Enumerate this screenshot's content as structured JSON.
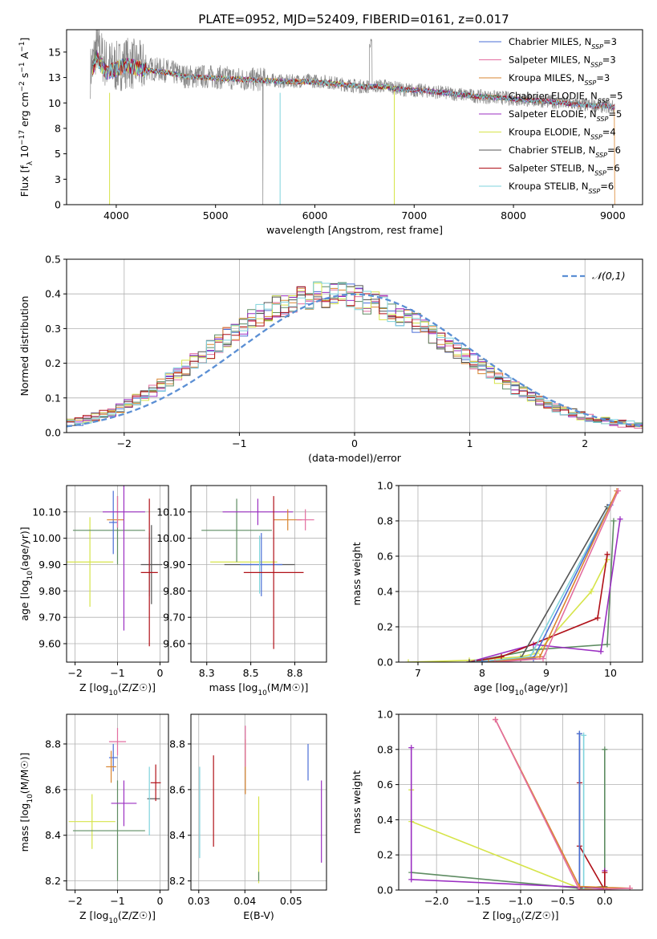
{
  "figure_title": "PLATE=0952, MJD=52409, FIBERID=0161, z=0.017",
  "series_styles": [
    {
      "name": "Chabrier MILES",
      "nssp": "3",
      "color": "#4a6ed6"
    },
    {
      "name": "Salpeter MILES",
      "nssp": "3",
      "color": "#e36ea0"
    },
    {
      "name": "Kroupa MILES",
      "nssp": "3",
      "color": "#d98530"
    },
    {
      "name": "Chabrier ELODIE",
      "nssp": "5",
      "color": "#5e8c62"
    },
    {
      "name": "Salpeter ELODIE",
      "nssp": "5",
      "color": "#9b2fc2"
    },
    {
      "name": "Kroupa ELODIE",
      "nssp": "4",
      "color": "#d6e44a"
    },
    {
      "name": "Chabrier STELIB",
      "nssp": "6",
      "color": "#555555"
    },
    {
      "name": "Salpeter STELIB",
      "nssp": "6",
      "color": "#b01018"
    },
    {
      "name": "Kroupa STELIB",
      "nssp": "6",
      "color": "#7fd3dc"
    }
  ],
  "chart_data": [
    {
      "id": "spectrum",
      "type": "line",
      "title": "PLATE=0952, MJD=52409, FIBERID=0161, z=0.017",
      "xlabel": "wavelength [Angstrom, rest frame]",
      "ylabel": "Flux [f_λ 10^-17 erg cm^-2 s^-1 A^-1]",
      "xlim": [
        3500,
        9300
      ],
      "ylim": [
        0,
        17.2
      ],
      "xticks": [
        4000,
        5000,
        6000,
        7000,
        8000,
        9000
      ],
      "yticks": [
        0.0,
        2.5,
        5.0,
        7.5,
        10.0,
        12.5,
        15.0
      ],
      "legend": "upper right",
      "data": {
        "observed": {
          "color": "#888888",
          "x": [
            3740,
            3800,
            3900,
            4000,
            4100,
            4300,
            4500,
            4700,
            4900,
            5100,
            5300,
            5500,
            5700,
            5900,
            6100,
            6300,
            6500,
            6700,
            6900,
            7100,
            7300,
            7500,
            7700,
            7900,
            8100,
            8300,
            8500,
            8700,
            8900,
            9020
          ],
          "y": [
            13.0,
            15.5,
            13.8,
            13.5,
            14.0,
            13.4,
            13.2,
            12.6,
            12.6,
            12.5,
            12.3,
            12.3,
            12.1,
            12.2,
            12.1,
            11.8,
            11.6,
            11.7,
            11.3,
            11.2,
            11.0,
            10.8,
            10.6,
            10.5,
            10.3,
            10.2,
            10.0,
            9.8,
            9.7,
            9.6
          ]
        },
        "model": {
          "x": [
            3740,
            3800,
            3900,
            4000,
            4100,
            4300,
            4500,
            4700,
            4900,
            5100,
            5300,
            5500,
            5700,
            5900,
            6100,
            6300,
            6500,
            6700,
            6900,
            7100,
            7300,
            7500,
            7700,
            7900,
            8100,
            8300,
            8500,
            8700,
            8900,
            9020
          ],
          "y": [
            12.5,
            14.5,
            13.0,
            13.3,
            13.7,
            13.2,
            13.0,
            12.6,
            12.5,
            12.4,
            12.3,
            12.2,
            12.1,
            12.1,
            12.0,
            11.8,
            11.6,
            11.6,
            11.3,
            11.2,
            11.0,
            10.8,
            10.6,
            10.5,
            10.3,
            10.2,
            10.0,
            9.8,
            9.7,
            9.6
          ]
        }
      }
    },
    {
      "id": "residual_hist",
      "type": "histogram",
      "xlabel": "(data-model)/error",
      "ylabel": "Normed distribution",
      "xlim": [
        -2.5,
        2.5
      ],
      "ylim": [
        0,
        0.5
      ],
      "xticks": [
        -2,
        -1,
        0,
        1,
        2
      ],
      "yticks": [
        0.0,
        0.1,
        0.2,
        0.3,
        0.4,
        0.5
      ],
      "legend": "upper right",
      "reference_label": "𝒩(0,1)",
      "reference_color": "#5b8fd4",
      "bin_width": 0.1,
      "bin_start": -2.5,
      "base_values": [
        0.028,
        0.032,
        0.038,
        0.045,
        0.052,
        0.06,
        0.07,
        0.082,
        0.095,
        0.108,
        0.122,
        0.138,
        0.155,
        0.17,
        0.188,
        0.205,
        0.222,
        0.24,
        0.258,
        0.275,
        0.292,
        0.308,
        0.322,
        0.336,
        0.348,
        0.36,
        0.37,
        0.38,
        0.388,
        0.394,
        0.398,
        0.399,
        0.399,
        0.396,
        0.392,
        0.386,
        0.378,
        0.37,
        0.36,
        0.35,
        0.338,
        0.326,
        0.312,
        0.298,
        0.283,
        0.268,
        0.252,
        0.236,
        0.22,
        0.204,
        0.188,
        0.172,
        0.157,
        0.142,
        0.128,
        0.115,
        0.102,
        0.09,
        0.08,
        0.071,
        0.063,
        0.056,
        0.049,
        0.043,
        0.038,
        0.033,
        0.029,
        0.026,
        0.023,
        0.021
      ]
    },
    {
      "id": "z_age",
      "type": "errorbar",
      "xlabel": "Z [log10(Z/Z☉)]",
      "ylabel": "age [log10(age/yr)]",
      "xlim": [
        -2.2,
        0.2
      ],
      "ylim": [
        9.53,
        10.2
      ],
      "xticks": [
        -2,
        -1,
        0
      ],
      "yticks": [
        9.6,
        9.7,
        9.8,
        9.9,
        10.0,
        10.1
      ],
      "points": [
        {
          "s": 5,
          "x": -1.65,
          "y": 9.91,
          "dx": 0.55,
          "dy": 0.17
        },
        {
          "s": 3,
          "x": -1.2,
          "y": 10.03,
          "dx": 0.85,
          "dy": 0.0
        },
        {
          "s": 3,
          "x": -1.0,
          "y": 10.03,
          "dx": 0.0,
          "dy": 0.13
        },
        {
          "s": 0,
          "x": -1.1,
          "y": 10.06,
          "dx": 0.1,
          "dy": 0.12
        },
        {
          "s": 2,
          "x": -1.05,
          "y": 10.07,
          "dx": 0.2,
          "dy": 0.0
        },
        {
          "s": 1,
          "x": -1.0,
          "y": 10.1,
          "dx": 0.0,
          "dy": 0.06
        },
        {
          "s": 4,
          "x": -0.85,
          "y": 10.1,
          "dx": 0.5,
          "dy": 0.45
        },
        {
          "s": 6,
          "x": -0.2,
          "y": 9.9,
          "dx": 0.25,
          "dy": 0.15
        },
        {
          "s": 8,
          "x": -0.25,
          "y": 9.9,
          "dx": 0.0,
          "dy": 0.12
        },
        {
          "s": 7,
          "x": -0.25,
          "y": 9.87,
          "dx": 0.2,
          "dy": 0.28
        }
      ]
    },
    {
      "id": "mass_age",
      "type": "errorbar",
      "xlabel": "mass [log10(M/M☉)]",
      "ylabel": "",
      "xlim": [
        8.16,
        8.93
      ],
      "ylim": [
        9.53,
        10.2
      ],
      "xticks": [
        8.25,
        8.5,
        8.75
      ],
      "yticks": [
        9.6,
        9.7,
        9.8,
        9.9,
        10.0,
        10.1
      ],
      "points": [
        {
          "s": 5,
          "x": 8.46,
          "y": 9.91,
          "dx": 0.19,
          "dy": 0.0
        },
        {
          "s": 3,
          "x": 8.42,
          "y": 10.03,
          "dx": 0.2,
          "dy": 0.12
        },
        {
          "s": 6,
          "x": 8.55,
          "y": 9.9,
          "dx": 0.2,
          "dy": 0.0
        },
        {
          "s": 0,
          "x": 8.56,
          "y": 9.9,
          "dx": 0.12,
          "dy": 0.12
        },
        {
          "s": 8,
          "x": 8.55,
          "y": 9.9,
          "dx": 0.0,
          "dy": 0.11
        },
        {
          "s": 4,
          "x": 8.54,
          "y": 10.1,
          "dx": 0.2,
          "dy": 0.05
        },
        {
          "s": 2,
          "x": 8.71,
          "y": 10.07,
          "dx": 0.08,
          "dy": 0.04
        },
        {
          "s": 1,
          "x": 8.81,
          "y": 10.07,
          "dx": 0.05,
          "dy": 0.04
        },
        {
          "s": 7,
          "x": 8.63,
          "y": 9.87,
          "dx": 0.17,
          "dy": 0.29
        }
      ]
    },
    {
      "id": "age_mw",
      "type": "line",
      "xlabel": "age [log10(age/yr)]",
      "ylabel": "mass weight",
      "xlim": [
        6.7,
        10.5
      ],
      "ylim": [
        0,
        1.0
      ],
      "xticks": [
        7,
        8,
        9,
        10
      ],
      "yticks": [
        0.0,
        0.2,
        0.4,
        0.6,
        0.8,
        1.0
      ],
      "series": [
        {
          "s": 5,
          "x": [
            6.85,
            7.8,
            8.6,
            8.85,
            9.7,
            9.95
          ],
          "y": [
            0.0,
            0.01,
            0.03,
            0.05,
            0.4,
            0.58
          ]
        },
        {
          "s": 3,
          "x": [
            7.8,
            8.8,
            9.95,
            10.05
          ],
          "y": [
            0.0,
            0.07,
            0.1,
            0.8
          ]
        },
        {
          "s": 4,
          "x": [
            7.8,
            8.8,
            9.85,
            10.15
          ],
          "y": [
            0.0,
            0.1,
            0.06,
            0.81
          ]
        },
        {
          "s": 7,
          "x": [
            7.8,
            8.3,
            9.8,
            9.95
          ],
          "y": [
            0.0,
            0.03,
            0.25,
            0.61
          ]
        },
        {
          "s": 6,
          "x": [
            7.8,
            8.6,
            9.95
          ],
          "y": [
            0.0,
            0.02,
            0.88
          ]
        },
        {
          "s": 8,
          "x": [
            7.9,
            8.75,
            9.98
          ],
          "y": [
            0.0,
            0.03,
            0.88
          ]
        },
        {
          "s": 0,
          "x": [
            8.0,
            8.8,
            10.0
          ],
          "y": [
            0.0,
            0.02,
            0.89
          ]
        },
        {
          "s": 2,
          "x": [
            8.1,
            8.9,
            10.1
          ],
          "y": [
            0.0,
            0.03,
            0.97
          ]
        },
        {
          "s": 1,
          "x": [
            8.2,
            8.95,
            10.12
          ],
          "y": [
            0.0,
            0.02,
            0.97
          ]
        }
      ]
    },
    {
      "id": "z_mass",
      "type": "errorbar",
      "xlabel": "Z [log10(Z/Z☉)]",
      "ylabel": "mass [log10(M/M☉)]",
      "xlim": [
        -2.2,
        0.2
      ],
      "ylim": [
        8.16,
        8.93
      ],
      "xticks": [
        -2,
        -1,
        0
      ],
      "yticks": [
        8.2,
        8.4,
        8.6,
        8.8
      ],
      "points": [
        {
          "s": 5,
          "x": -1.6,
          "y": 8.46,
          "dx": 0.55,
          "dy": 0.12
        },
        {
          "s": 3,
          "x": -1.2,
          "y": 8.42,
          "dx": 0.85,
          "dy": 0.0
        },
        {
          "s": 3,
          "x": -1.0,
          "y": 8.42,
          "dx": 0.0,
          "dy": 0.22
        },
        {
          "s": 0,
          "x": -1.1,
          "y": 8.74,
          "dx": 0.1,
          "dy": 0.06
        },
        {
          "s": 2,
          "x": -1.15,
          "y": 8.7,
          "dx": 0.12,
          "dy": 0.07
        },
        {
          "s": 1,
          "x": -1.0,
          "y": 8.81,
          "dx": 0.2,
          "dy": 0.06
        },
        {
          "s": 4,
          "x": -0.85,
          "y": 8.54,
          "dx": 0.3,
          "dy": 0.1
        },
        {
          "s": 6,
          "x": -0.15,
          "y": 8.56,
          "dx": 0.15,
          "dy": 0.0
        },
        {
          "s": 8,
          "x": -0.25,
          "y": 8.55,
          "dx": 0.0,
          "dy": 0.15
        },
        {
          "s": 7,
          "x": -0.1,
          "y": 8.63,
          "dx": 0.12,
          "dy": 0.08
        }
      ]
    },
    {
      "id": "ebv_mass",
      "type": "errorbar",
      "xlabel": "E(B-V)",
      "ylabel": "",
      "xlim": [
        0.0283,
        0.0577
      ],
      "ylim": [
        8.16,
        8.93
      ],
      "xticks": [
        0.03,
        0.04,
        0.05
      ],
      "yticks": [
        8.2,
        8.4,
        8.6,
        8.8
      ],
      "points": [
        {
          "s": 8,
          "x": 0.0302,
          "y": 8.5,
          "dx": 0.0,
          "dy": 0.2
        },
        {
          "s": 7,
          "x": 0.0332,
          "y": 8.55,
          "dx": 0.0,
          "dy": 0.2
        },
        {
          "s": 2,
          "x": 0.0401,
          "y": 8.7,
          "dx": 0.0,
          "dy": 0.12
        },
        {
          "s": 1,
          "x": 0.0401,
          "y": 8.79,
          "dx": 0.0,
          "dy": 0.09
        },
        {
          "s": 5,
          "x": 0.043,
          "y": 8.38,
          "dx": 0.0,
          "dy": 0.19
        },
        {
          "s": 3,
          "x": 0.043,
          "y": 8.22,
          "dx": 0.0,
          "dy": 0.02
        },
        {
          "s": 0,
          "x": 0.0537,
          "y": 8.72,
          "dx": 0.0,
          "dy": 0.08
        },
        {
          "s": 4,
          "x": 0.0566,
          "y": 8.46,
          "dx": 0.0,
          "dy": 0.18
        }
      ]
    },
    {
      "id": "z_mw",
      "type": "line",
      "xlabel": "Z [log10(Z/Z☉)]",
      "ylabel": "mass weight",
      "xlim": [
        -2.45,
        0.45
      ],
      "ylim": [
        0,
        1.0
      ],
      "xticks": [
        -2.0,
        -1.5,
        -1.0,
        -0.5,
        0.0
      ],
      "yticks": [
        0.0,
        0.2,
        0.4,
        0.6,
        0.8,
        1.0
      ],
      "series": [
        {
          "s": 5,
          "x": [
            -2.3,
            -2.3,
            -0.3,
            0.0
          ],
          "y": [
            0.57,
            0.39,
            0.01,
            0.0
          ]
        },
        {
          "s": 3,
          "x": [
            -2.3,
            -0.3,
            0.0,
            0.0
          ],
          "y": [
            0.1,
            0.01,
            0.02,
            0.8
          ]
        },
        {
          "s": 4,
          "x": [
            -2.3,
            -2.3,
            0.0,
            0.0
          ],
          "y": [
            0.81,
            0.06,
            0.01,
            0.11
          ]
        },
        {
          "s": 7,
          "x": [
            -0.3,
            -0.3,
            0.0,
            0.0
          ],
          "y": [
            0.61,
            0.25,
            0.0,
            0.1
          ]
        },
        {
          "s": 6,
          "x": [
            -0.3,
            -0.3
          ],
          "y": [
            0.89,
            0.01
          ]
        },
        {
          "s": 8,
          "x": [
            -0.25,
            -0.25,
            0.0
          ],
          "y": [
            0.88,
            0.0,
            0.0
          ]
        },
        {
          "s": 0,
          "x": [
            -0.3,
            -0.3
          ],
          "y": [
            0.89,
            0.0
          ]
        },
        {
          "s": 2,
          "x": [
            -1.3,
            -0.3,
            0.3
          ],
          "y": [
            0.97,
            0.02,
            0.01
          ]
        },
        {
          "s": 1,
          "x": [
            -1.3,
            -0.3,
            0.3
          ],
          "y": [
            0.97,
            0.0,
            0.01
          ]
        }
      ]
    }
  ]
}
